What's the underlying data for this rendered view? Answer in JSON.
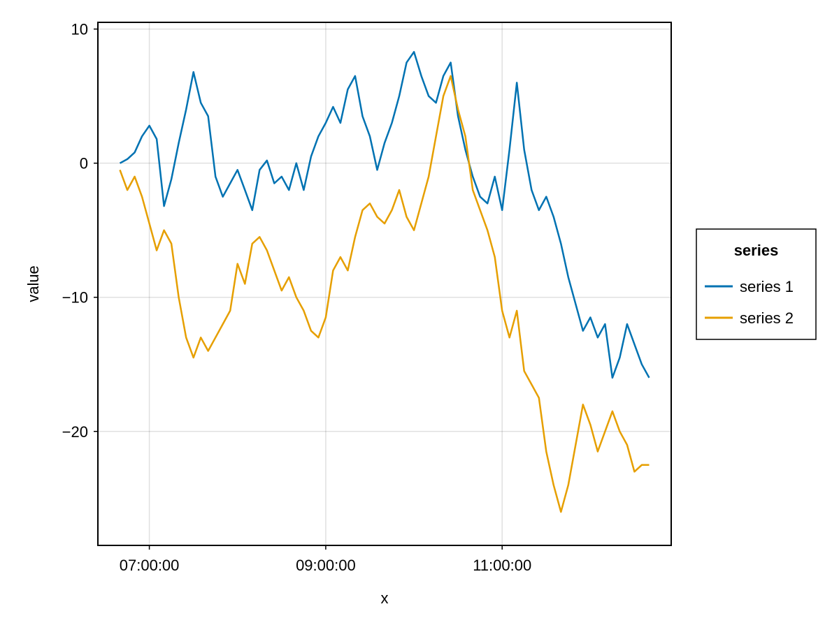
{
  "chart_data": {
    "type": "line",
    "title": "",
    "xlabel": "x",
    "ylabel": "value",
    "x_axis": {
      "kind": "time",
      "range": [
        "06:25:00",
        "12:55:00"
      ],
      "ticks": [
        "07:00:00",
        "09:00:00",
        "11:00:00"
      ]
    },
    "y_axis": {
      "range": [
        -28.5,
        10.5
      ],
      "ticks": [
        10,
        0,
        -10,
        -20
      ],
      "tick_labels": [
        "10",
        "0",
        "−10",
        "−20"
      ]
    },
    "grid": true,
    "legend": {
      "title": "series",
      "placement": "right"
    },
    "x": [
      "06:40:00",
      "06:45:00",
      "06:50:00",
      "06:55:00",
      "07:00:00",
      "07:05:00",
      "07:10:00",
      "07:15:00",
      "07:20:00",
      "07:25:00",
      "07:30:00",
      "07:35:00",
      "07:40:00",
      "07:45:00",
      "07:50:00",
      "07:55:00",
      "08:00:00",
      "08:05:00",
      "08:10:00",
      "08:15:00",
      "08:20:00",
      "08:25:00",
      "08:30:00",
      "08:35:00",
      "08:40:00",
      "08:45:00",
      "08:50:00",
      "08:55:00",
      "09:00:00",
      "09:05:00",
      "09:10:00",
      "09:15:00",
      "09:20:00",
      "09:25:00",
      "09:30:00",
      "09:35:00",
      "09:40:00",
      "09:45:00",
      "09:50:00",
      "09:55:00",
      "10:00:00",
      "10:05:00",
      "10:10:00",
      "10:15:00",
      "10:20:00",
      "10:25:00",
      "10:30:00",
      "10:35:00",
      "10:40:00",
      "10:45:00",
      "10:50:00",
      "10:55:00",
      "11:00:00",
      "11:05:00",
      "11:10:00",
      "11:15:00",
      "11:20:00",
      "11:25:00",
      "11:30:00",
      "11:35:00",
      "11:40:00",
      "11:45:00",
      "11:50:00",
      "11:55:00",
      "12:00:00",
      "12:05:00",
      "12:10:00",
      "12:15:00",
      "12:20:00",
      "12:25:00",
      "12:30:00",
      "12:35:00",
      "12:40:00"
    ],
    "series": [
      {
        "name": "series 1",
        "color": "#0072b2",
        "values": [
          0.0,
          0.3,
          0.8,
          2.0,
          2.8,
          1.8,
          -3.2,
          -1.2,
          1.5,
          4.0,
          6.8,
          4.5,
          3.5,
          -1.0,
          -2.5,
          -1.5,
          -0.5,
          -2.0,
          -3.5,
          -0.5,
          0.2,
          -1.5,
          -1.0,
          -2.0,
          0.0,
          -2.0,
          0.5,
          2.0,
          3.0,
          4.2,
          3.0,
          5.5,
          6.5,
          3.5,
          2.0,
          -0.5,
          1.5,
          3.0,
          5.0,
          7.5,
          8.3,
          6.5,
          5.0,
          4.5,
          6.5,
          7.5,
          3.5,
          1.0,
          -1.0,
          -2.5,
          -3.0,
          -1.0,
          -3.5,
          1.0,
          6.0,
          1.0,
          -2.0,
          -3.5,
          -2.5,
          -4.0,
          -6.0,
          -8.5,
          -10.5,
          -12.5,
          -11.5,
          -13.0,
          -12.0,
          -16.0,
          -14.5,
          -12.0,
          -13.5,
          -15.0,
          -16.0
        ]
      },
      {
        "name": "series 2",
        "color": "#e69f00",
        "values": [
          -0.5,
          -2.0,
          -1.0,
          -2.5,
          -4.5,
          -6.5,
          -5.0,
          -6.0,
          -10.0,
          -13.0,
          -14.5,
          -13.0,
          -14.0,
          -13.0,
          -12.0,
          -11.0,
          -7.5,
          -9.0,
          -6.0,
          -5.5,
          -6.5,
          -8.0,
          -9.5,
          -8.5,
          -10.0,
          -11.0,
          -12.5,
          -13.0,
          -11.5,
          -8.0,
          -7.0,
          -8.0,
          -5.5,
          -3.5,
          -3.0,
          -4.0,
          -4.5,
          -3.5,
          -2.0,
          -4.0,
          -5.0,
          -3.0,
          -1.0,
          2.0,
          5.0,
          6.5,
          4.0,
          2.0,
          -2.0,
          -3.5,
          -5.0,
          -7.0,
          -11.0,
          -13.0,
          -11.0,
          -15.5,
          -16.5,
          -17.5,
          -21.5,
          -24.0,
          -26.0,
          -24.0,
          -21.0,
          -18.0,
          -19.5,
          -21.5,
          -20.0,
          -18.5,
          -20.0,
          -21.0,
          -23.0,
          -22.5,
          -22.5
        ]
      }
    ]
  }
}
